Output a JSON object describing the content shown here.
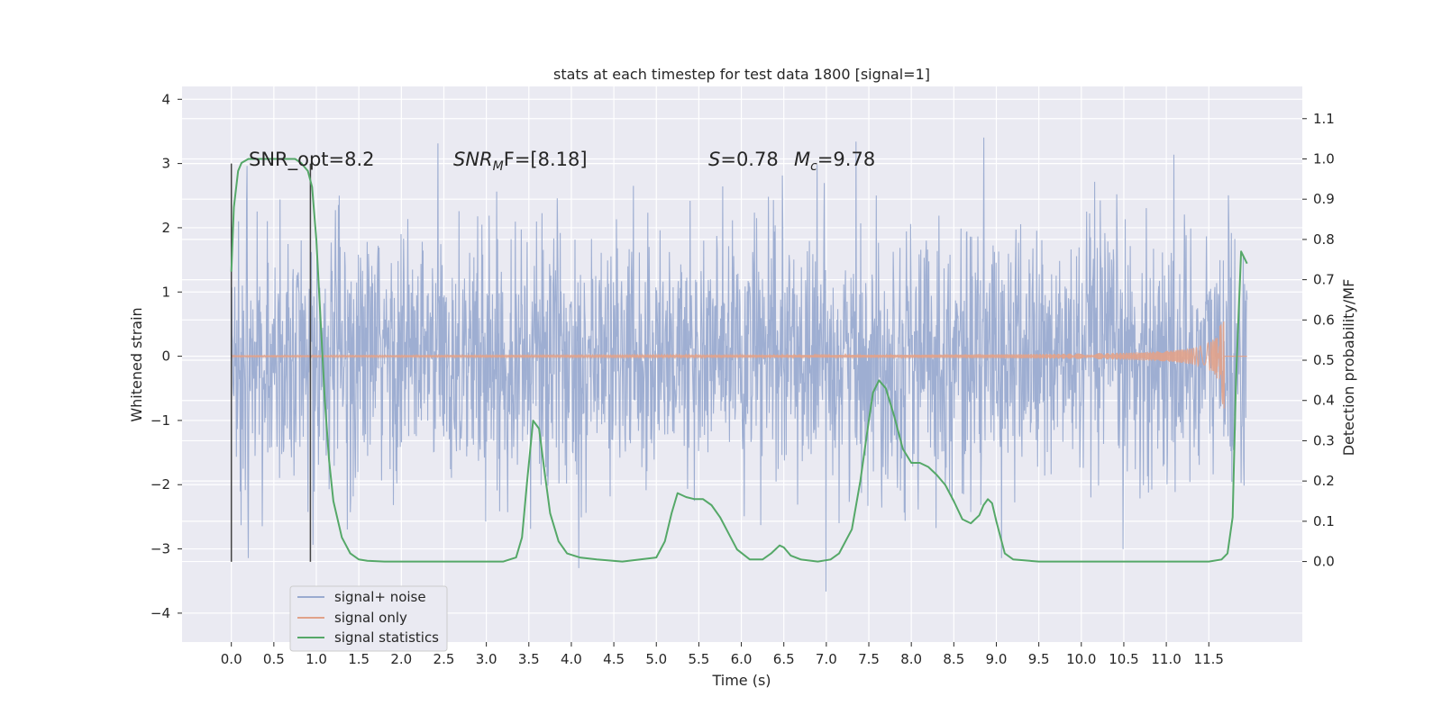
{
  "chart_data": {
    "type": "line",
    "title": "stats at each timestep for test data 1800 [signal=1]",
    "xlabel": "Time (s)",
    "ylabel_left": "Whitened strain",
    "ylabel_right": "Detection probability/MF",
    "xlim": [
      -0.58,
      12.6
    ],
    "ylim_left": [
      -4.45,
      4.2
    ],
    "ylim_right": [
      -0.2,
      1.18
    ],
    "xticks": [
      "0.0",
      "0.5",
      "1.0",
      "1.5",
      "2.0",
      "2.5",
      "3.0",
      "3.5",
      "4.0",
      "4.5",
      "5.0",
      "5.5",
      "6.0",
      "6.5",
      "7.0",
      "7.5",
      "8.0",
      "8.5",
      "9.0",
      "9.5",
      "10.0",
      "10.5",
      "11.0",
      "11.5"
    ],
    "yticks_left": [
      "4",
      "3",
      "2",
      "1",
      "0",
      "−1",
      "−2",
      "−3",
      "−4"
    ],
    "yticks_right": [
      "1.1",
      "1.0",
      "0.9",
      "0.8",
      "0.7",
      "0.6",
      "0.5",
      "0.4",
      "0.3",
      "0.2",
      "0.1",
      "0.0"
    ],
    "grid": true,
    "legend_position": "lower-left",
    "annotations": {
      "snr_opt": "SNR_opt=8.2",
      "snr_mf_main": "SNR",
      "snr_mf_sub": "M",
      "snr_mf_rest": "F=[8.18]",
      "s_label": "S",
      "s_value": "=0.78",
      "mc_label": "M",
      "mc_sub": "c",
      "mc_value": "=9.78"
    },
    "window_markers": [
      0.0,
      0.93
    ],
    "series": [
      {
        "name": "signal+ noise",
        "color": "#9aabd0",
        "axis": "left",
        "noise_envelope": 1.0,
        "peak_range": [
          -4.1,
          3.8
        ]
      },
      {
        "name": "signal only",
        "color": "#e1a28a",
        "axis": "left",
        "chirp_end_time": 11.68,
        "chirp_peak_amplitude": 1.2
      },
      {
        "name": "signal statistics",
        "color": "#55a868",
        "axis": "right",
        "x": [
          0.0,
          0.03,
          0.08,
          0.12,
          0.2,
          0.3,
          0.5,
          0.75,
          0.82,
          0.9,
          0.95,
          1.0,
          1.05,
          1.1,
          1.15,
          1.2,
          1.3,
          1.4,
          1.5,
          1.6,
          1.8,
          2.0,
          2.5,
          3.0,
          3.2,
          3.35,
          3.42,
          3.48,
          3.55,
          3.62,
          3.68,
          3.75,
          3.85,
          3.95,
          4.1,
          4.3,
          4.6,
          5.0,
          5.1,
          5.18,
          5.25,
          5.35,
          5.45,
          5.55,
          5.65,
          5.75,
          5.85,
          5.95,
          6.1,
          6.25,
          6.35,
          6.45,
          6.5,
          6.58,
          6.7,
          6.9,
          7.05,
          7.15,
          7.3,
          7.4,
          7.5,
          7.55,
          7.62,
          7.7,
          7.8,
          7.9,
          8.0,
          8.1,
          8.2,
          8.3,
          8.4,
          8.5,
          8.6,
          8.7,
          8.8,
          8.85,
          8.9,
          8.95,
          9.0,
          9.1,
          9.2,
          9.5,
          10.0,
          11.0,
          11.5,
          11.65,
          11.72,
          11.78,
          11.82,
          11.88,
          11.95
        ],
        "values": [
          0.72,
          0.88,
          0.97,
          0.99,
          1.0,
          1.0,
          1.0,
          1.0,
          0.99,
          0.97,
          0.93,
          0.8,
          0.6,
          0.4,
          0.25,
          0.15,
          0.06,
          0.02,
          0.005,
          0.002,
          0.0,
          0.0,
          0.0,
          0.0,
          0.0,
          0.01,
          0.06,
          0.2,
          0.35,
          0.33,
          0.23,
          0.12,
          0.05,
          0.02,
          0.01,
          0.005,
          0.0,
          0.01,
          0.05,
          0.12,
          0.17,
          0.16,
          0.155,
          0.155,
          0.14,
          0.11,
          0.07,
          0.03,
          0.005,
          0.005,
          0.02,
          0.04,
          0.035,
          0.015,
          0.005,
          0.0,
          0.005,
          0.02,
          0.08,
          0.2,
          0.35,
          0.42,
          0.45,
          0.43,
          0.36,
          0.28,
          0.245,
          0.245,
          0.235,
          0.215,
          0.19,
          0.15,
          0.105,
          0.095,
          0.115,
          0.14,
          0.155,
          0.145,
          0.1,
          0.02,
          0.005,
          0.0,
          0.0,
          0.0,
          0.0,
          0.005,
          0.02,
          0.11,
          0.45,
          0.77,
          0.74
        ]
      }
    ]
  }
}
